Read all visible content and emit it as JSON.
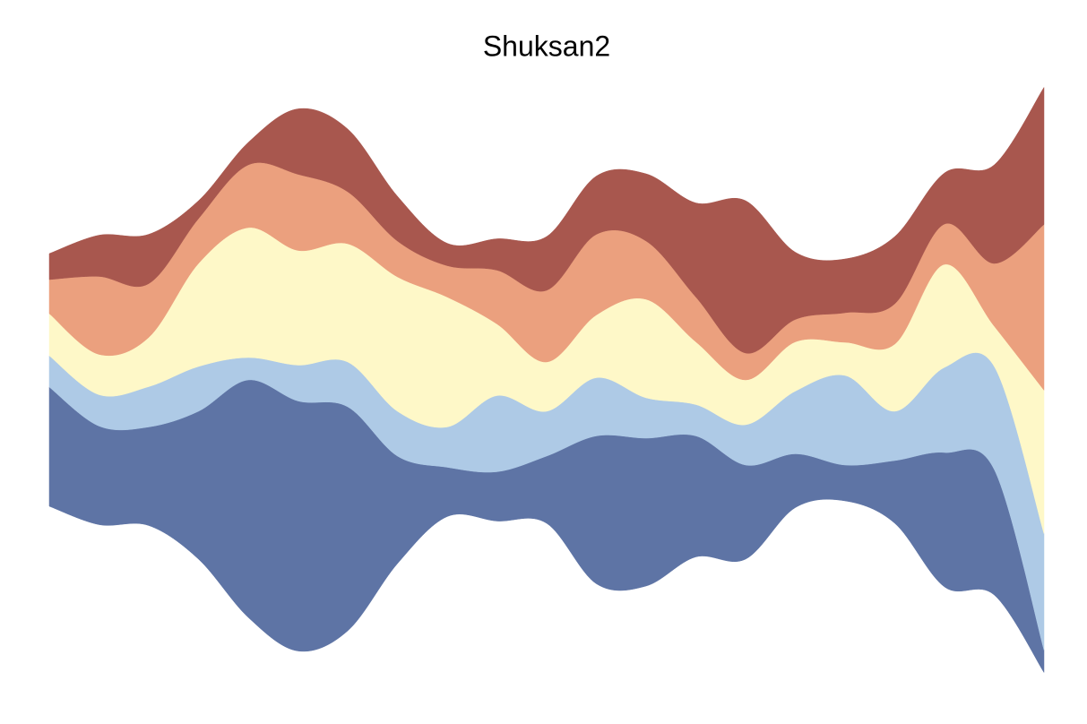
{
  "chart_data": {
    "type": "streamgraph",
    "title": "Shuksan2",
    "series": [
      {
        "color": "#5e74a5",
        "values": [
          133,
          110,
          110,
          165,
          265,
          279,
          250,
          120,
          55,
          55,
          75,
          165,
          165,
          135,
          105,
          60,
          40,
          70,
          150,
          140,
          25
        ]
      },
      {
        "color": "#aecae6",
        "values": [
          35,
          35,
          45,
          50,
          25,
          40,
          50,
          50,
          45,
          85,
          50,
          65,
          45,
          35,
          45,
          70,
          100,
          55,
          95,
          115,
          130
        ]
      },
      {
        "color": "#fef8c8",
        "values": [
          47,
          45,
          55,
          115,
          145,
          128,
          132,
          150,
          145,
          80,
          55,
          70,
          110,
          70,
          50,
          55,
          37,
          75,
          115,
          45,
          160
        ]
      },
      {
        "color": "#eba07e",
        "values": [
          38,
          87,
          60,
          50,
          70,
          85,
          58,
          40,
          35,
          60,
          80,
          90,
          65,
          50,
          30,
          25,
          33,
          45,
          45,
          70,
          185
        ]
      },
      {
        "color": "#a8574e",
        "values": [
          29,
          46,
          55,
          20,
          25,
          73,
          70,
          50,
          25,
          35,
          60,
          65,
          75,
          105,
          170,
          75,
          60,
          75,
          57,
          110,
          153
        ]
      }
    ]
  }
}
